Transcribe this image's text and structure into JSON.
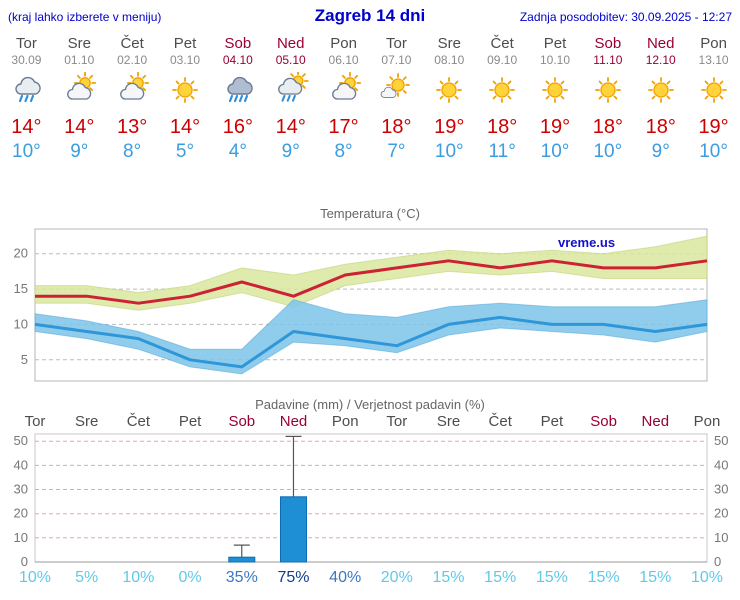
{
  "header": {
    "left_note": "(kraj lahko izberete v meniju)",
    "title": "Zagreb 14 dni",
    "updated": "Zadnja posodobitev: 30.09.2025 - 12:27"
  },
  "colors": {
    "header_blue": "#0000cc",
    "weekday_text": "#4d4d4d",
    "date_text": "#8a8a8a",
    "weekend_text": "#990033",
    "temp_max": "#cc0000",
    "temp_min": "#3b9de0",
    "chart_title": "#666666",
    "grid_temp": "#bbbbbb",
    "grid_precip": "#e2a8a8",
    "band_max": "#d9e79e",
    "band_min": "#7cc4ea",
    "line_max": "#cc2233",
    "line_min": "#2f96d8",
    "bar_fill": "#1e8fd5",
    "bar_stroke": "#0d6bb0",
    "whisker": "#555555",
    "prob_low": "#5fc9e9",
    "prob_mid": "#3a77c4",
    "prob_high": "#123e8c",
    "watermark": "#1111cc"
  },
  "days": [
    {
      "name": "Tor",
      "date": "30.09",
      "weekend": false,
      "icon": "cloud-rain",
      "tmax_label": "14°",
      "tmin_label": "10°",
      "prob_label": "10%"
    },
    {
      "name": "Sre",
      "date": "01.10",
      "weekend": false,
      "icon": "sun-cloud",
      "tmax_label": "14°",
      "tmin_label": "9°",
      "prob_label": "5%"
    },
    {
      "name": "Čet",
      "date": "02.10",
      "weekend": false,
      "icon": "sun-cloud",
      "tmax_label": "13°",
      "tmin_label": "8°",
      "prob_label": "10%"
    },
    {
      "name": "Pet",
      "date": "03.10",
      "weekend": false,
      "icon": "sunny",
      "tmax_label": "14°",
      "tmin_label": "5°",
      "prob_label": "0%"
    },
    {
      "name": "Sob",
      "date": "04.10",
      "weekend": true,
      "icon": "heavy-rain",
      "tmax_label": "16°",
      "tmin_label": "4°",
      "prob_label": "35%"
    },
    {
      "name": "Ned",
      "date": "05.10",
      "weekend": true,
      "icon": "sun-rain",
      "tmax_label": "14°",
      "tmin_label": "9°",
      "prob_label": "75%"
    },
    {
      "name": "Pon",
      "date": "06.10",
      "weekend": false,
      "icon": "sun-cloud",
      "tmax_label": "17°",
      "tmin_label": "8°",
      "prob_label": "40%"
    },
    {
      "name": "Tor",
      "date": "07.10",
      "weekend": false,
      "icon": "mostly-sunny",
      "tmax_label": "18°",
      "tmin_label": "7°",
      "prob_label": "20%"
    },
    {
      "name": "Sre",
      "date": "08.10",
      "weekend": false,
      "icon": "sunny",
      "tmax_label": "19°",
      "tmin_label": "10°",
      "prob_label": "15%"
    },
    {
      "name": "Čet",
      "date": "09.10",
      "weekend": false,
      "icon": "sunny",
      "tmax_label": "18°",
      "tmin_label": "11°",
      "prob_label": "15%"
    },
    {
      "name": "Pet",
      "date": "10.10",
      "weekend": false,
      "icon": "sunny",
      "tmax_label": "19°",
      "tmin_label": "10°",
      "prob_label": "15%"
    },
    {
      "name": "Sob",
      "date": "11.10",
      "weekend": true,
      "icon": "sunny",
      "tmax_label": "18°",
      "tmin_label": "10°",
      "prob_label": "15%"
    },
    {
      "name": "Ned",
      "date": "12.10",
      "weekend": true,
      "icon": "sunny",
      "tmax_label": "18°",
      "tmin_label": "9°",
      "prob_label": "15%"
    },
    {
      "name": "Pon",
      "date": "13.10",
      "weekend": false,
      "icon": "sunny",
      "tmax_label": "19°",
      "tmin_label": "10°",
      "prob_label": "10%"
    }
  ],
  "chart_data": [
    {
      "type": "line",
      "title": "Temperatura (°C)",
      "watermark": "vreme.us",
      "categories": [
        "Tor 30.09",
        "Sre 01.10",
        "Čet 02.10",
        "Pet 03.10",
        "Sob 04.10",
        "Ned 05.10",
        "Pon 06.10",
        "Tor 07.10",
        "Sre 08.10",
        "Čet 09.10",
        "Pet 10.10",
        "Sob 11.10",
        "Ned 12.10",
        "Pon 13.10"
      ],
      "ylim": [
        2,
        23.5
      ],
      "yticks": [
        5,
        10,
        15,
        20
      ],
      "grid": true,
      "legend": "none",
      "series": [
        {
          "name": "max",
          "values": [
            14,
            14,
            13,
            14,
            16,
            14,
            17,
            18,
            19,
            18,
            19,
            18,
            18,
            19
          ]
        },
        {
          "name": "min",
          "values": [
            10,
            9,
            8,
            5,
            4,
            9,
            8,
            7,
            10,
            11,
            10,
            10,
            9,
            10
          ]
        },
        {
          "name": "max_range_high",
          "values": [
            15.5,
            15.5,
            14.5,
            15.5,
            18,
            17,
            18.5,
            19.5,
            20.5,
            20,
            20.5,
            20,
            21,
            22.5
          ]
        },
        {
          "name": "max_range_low",
          "values": [
            13,
            13,
            12,
            13,
            14.5,
            12.5,
            15.5,
            16.5,
            17.5,
            17,
            17.5,
            16.5,
            16.5,
            16.5
          ]
        },
        {
          "name": "min_range_high",
          "values": [
            11.5,
            10.5,
            9,
            6.5,
            6.5,
            13.5,
            11.5,
            11,
            12.5,
            13,
            12.5,
            12.5,
            12.5,
            13.5
          ]
        },
        {
          "name": "min_range_low",
          "values": [
            9,
            8,
            6.5,
            4,
            3,
            7.5,
            7,
            6,
            8.5,
            9.5,
            9,
            8.5,
            7.5,
            9
          ]
        }
      ]
    },
    {
      "type": "bar",
      "title": "Padavine (mm) / Verjetnost padavin (%)",
      "categories": [
        "Tor",
        "Sre",
        "Čet",
        "Pet",
        "Sob",
        "Ned",
        "Pon",
        "Tor",
        "Sre",
        "Čet",
        "Pet",
        "Sob",
        "Ned",
        "Pon"
      ],
      "ylim": [
        0,
        53
      ],
      "yticks": [
        0,
        10,
        20,
        30,
        40,
        50
      ],
      "grid": true,
      "series": [
        {
          "name": "padavine_mm",
          "values": [
            0,
            0,
            0,
            0,
            2,
            27,
            0,
            0,
            0,
            0,
            0,
            0,
            0,
            0
          ]
        },
        {
          "name": "padavine_max_mm",
          "values": [
            0,
            0,
            0,
            0,
            7,
            52,
            0,
            0,
            0,
            0,
            0,
            0,
            0,
            0
          ]
        }
      ],
      "probabilities_pct": [
        10,
        5,
        10,
        0,
        35,
        75,
        40,
        20,
        15,
        15,
        15,
        15,
        15,
        10
      ]
    }
  ]
}
